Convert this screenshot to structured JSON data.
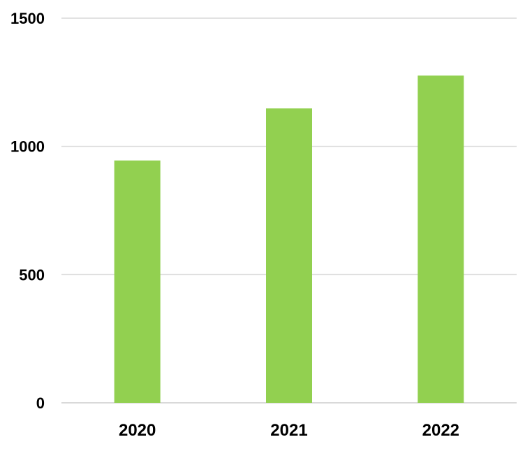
{
  "chart_data": {
    "type": "bar",
    "title": "",
    "xlabel": "",
    "ylabel": "",
    "categories": [
      "2020",
      "2021",
      "2022"
    ],
    "values": [
      945,
      1148,
      1276
    ],
    "ylim": [
      0,
      1500
    ],
    "yticks": [
      0,
      500,
      1000,
      1500
    ],
    "grid": true,
    "legend": "none",
    "bar_color": "#92d050",
    "grid_color": "#d9d9d9"
  }
}
